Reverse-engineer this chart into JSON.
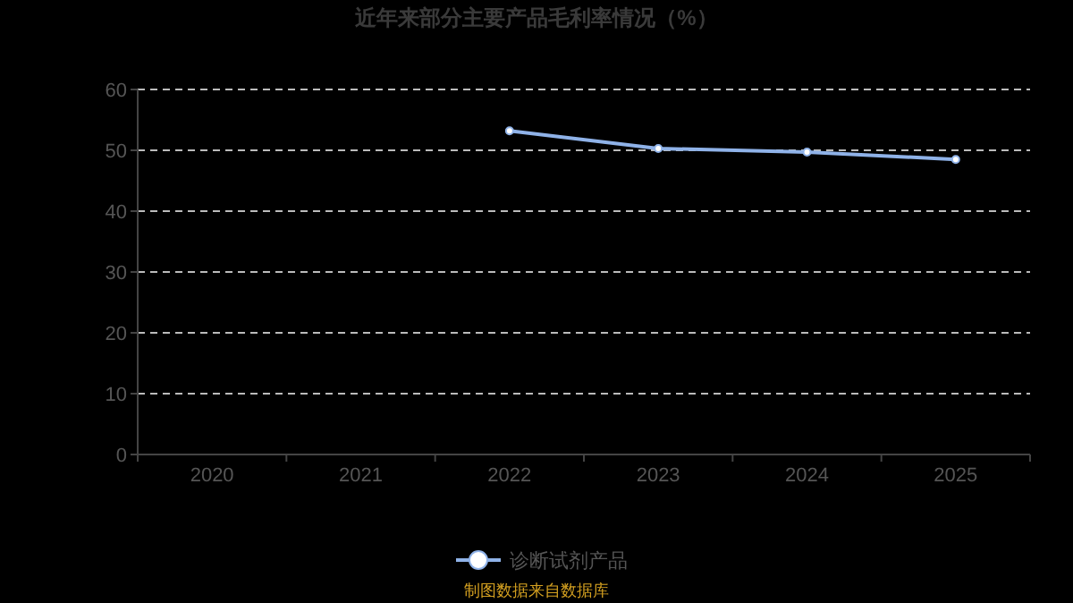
{
  "chart_data": {
    "type": "line",
    "title": "近年来部分主要产品毛利率情况（%）",
    "categories": [
      "2020",
      "2021",
      "2022",
      "2023",
      "2024",
      "2025"
    ],
    "series": [
      {
        "name": "诊断试剂产品",
        "color": "#8fb2e8",
        "values": [
          null,
          null,
          53.2,
          50.3,
          49.7,
          48.5
        ]
      }
    ],
    "ylim": [
      0,
      60
    ],
    "yticks": [
      0,
      10,
      20,
      30,
      40,
      50,
      60
    ],
    "grid": "y",
    "legend": "bottom",
    "marker": "circle",
    "annotations": [
      "制图数据来自数据库"
    ]
  }
}
